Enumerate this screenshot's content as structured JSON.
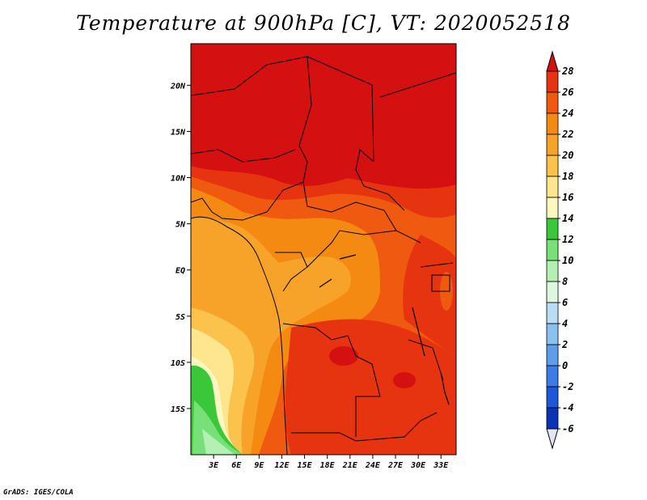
{
  "title": "Temperature at 900hPa [C], VT: 2020052518",
  "footer": "GrADS: IGES/COLA",
  "map": {
    "lat_ticks": [
      "20N",
      "15N",
      "10N",
      "5N",
      "EQ",
      "5S",
      "10S",
      "15S"
    ],
    "lon_ticks": [
      "3E",
      "6E",
      "9E",
      "12E",
      "15E",
      "18E",
      "21E",
      "24E",
      "27E",
      "30E",
      "33E"
    ],
    "lat_range": [
      -20,
      24.5
    ],
    "lon_range": [
      0,
      35
    ]
  },
  "colorbar": {
    "levels": [
      "28",
      "26",
      "24",
      "22",
      "20",
      "18",
      "16",
      "14",
      "12",
      "10",
      "8",
      "6",
      "4",
      "2",
      "0",
      "-2",
      "-4",
      "-6"
    ],
    "colors": [
      "#d51010",
      "#e63310",
      "#f05a10",
      "#f58a12",
      "#f7a32a",
      "#fbc24c",
      "#fde68e",
      "#fdf8c0",
      "#3ac83a",
      "#78e078",
      "#b4f0b4",
      "#def8e0",
      "#bbdcf5",
      "#8ac2ef",
      "#5c9eea",
      "#3b7ce6",
      "#1e58d8",
      "#0a34b6",
      "#000a70"
    ],
    "top_arrow_color": "#d51010",
    "bottom_arrow_color": "#e4e4f8"
  }
}
